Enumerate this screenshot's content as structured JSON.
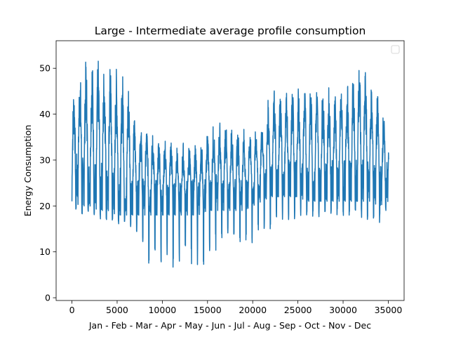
{
  "chart_data": {
    "type": "line",
    "title": "Large - Intermediate average profile consumption",
    "xlabel": "Jan - Feb - Mar - Apr - May - Jun - Jul - Aug - Sep - Oct - Nov - Dec",
    "ylabel": "Energy Consumption",
    "xlim": [
      -1750,
      36750
    ],
    "ylim": [
      -0.6,
      56
    ],
    "xticks": [
      0,
      5000,
      10000,
      15000,
      20000,
      25000,
      30000,
      35000
    ],
    "xtick_labels": [
      "0",
      "5000",
      "10000",
      "15000",
      "20000",
      "25000",
      "30000",
      "35000"
    ],
    "yticks": [
      0,
      10,
      20,
      30,
      40,
      50
    ],
    "ytick_labels": [
      "0",
      "10",
      "20",
      "30",
      "40",
      "50"
    ],
    "grid": false,
    "legend": "top-right, empty",
    "series": [
      {
        "color": "#1f77b4",
        "x_range": [
          0,
          35040
        ],
        "week_period_points": 672,
        "summary": "Quarter-hourly consumption over one year (~35040 samples). Strong weekly oscillation: weekday daytime peaks and weekend/night troughs.",
        "envelope": {
          "x": [
            0,
            1000,
            2000,
            3000,
            4000,
            5000,
            6000,
            7000,
            8000,
            9000,
            10000,
            11000,
            12000,
            13000,
            14000,
            15000,
            16000,
            17000,
            18000,
            19000,
            20000,
            21000,
            22000,
            23000,
            24000,
            25000,
            26000,
            27000,
            28000,
            29000,
            30000,
            31000,
            32000,
            33000,
            34000,
            35000
          ],
          "upper": [
            45,
            51,
            53,
            52,
            51,
            50,
            49,
            40,
            38,
            36,
            35,
            35,
            34,
            34,
            33,
            37,
            39,
            39,
            37,
            37,
            38,
            39,
            45,
            46,
            46,
            46,
            46,
            47,
            46,
            46,
            47,
            49,
            52,
            47,
            44,
            37
          ],
          "base_high": [
            32,
            31,
            30,
            30,
            29,
            29,
            28,
            27,
            26,
            26,
            25,
            25,
            25,
            26,
            26,
            26,
            27,
            26,
            26,
            26,
            26,
            28,
            29,
            30,
            30,
            30,
            30,
            30,
            30,
            30,
            30,
            30,
            30,
            30,
            29,
            30
          ],
          "base_low": [
            21,
            20,
            20,
            19,
            19,
            18,
            18,
            18,
            18,
            18,
            18,
            18,
            18,
            18,
            18,
            19,
            19,
            19,
            19,
            19,
            20,
            21,
            22,
            22,
            22,
            22,
            21,
            21,
            21,
            21,
            21,
            21,
            21,
            21,
            20,
            21
          ],
          "lower": [
            20,
            18,
            19,
            17,
            17,
            16,
            16,
            15,
            8,
            5,
            3,
            5,
            7,
            8,
            5,
            7,
            9,
            10,
            11,
            13,
            11,
            15,
            15,
            16,
            17,
            17,
            18,
            17,
            18,
            18,
            17,
            18,
            17,
            17,
            16,
            20
          ]
        }
      }
    ]
  }
}
